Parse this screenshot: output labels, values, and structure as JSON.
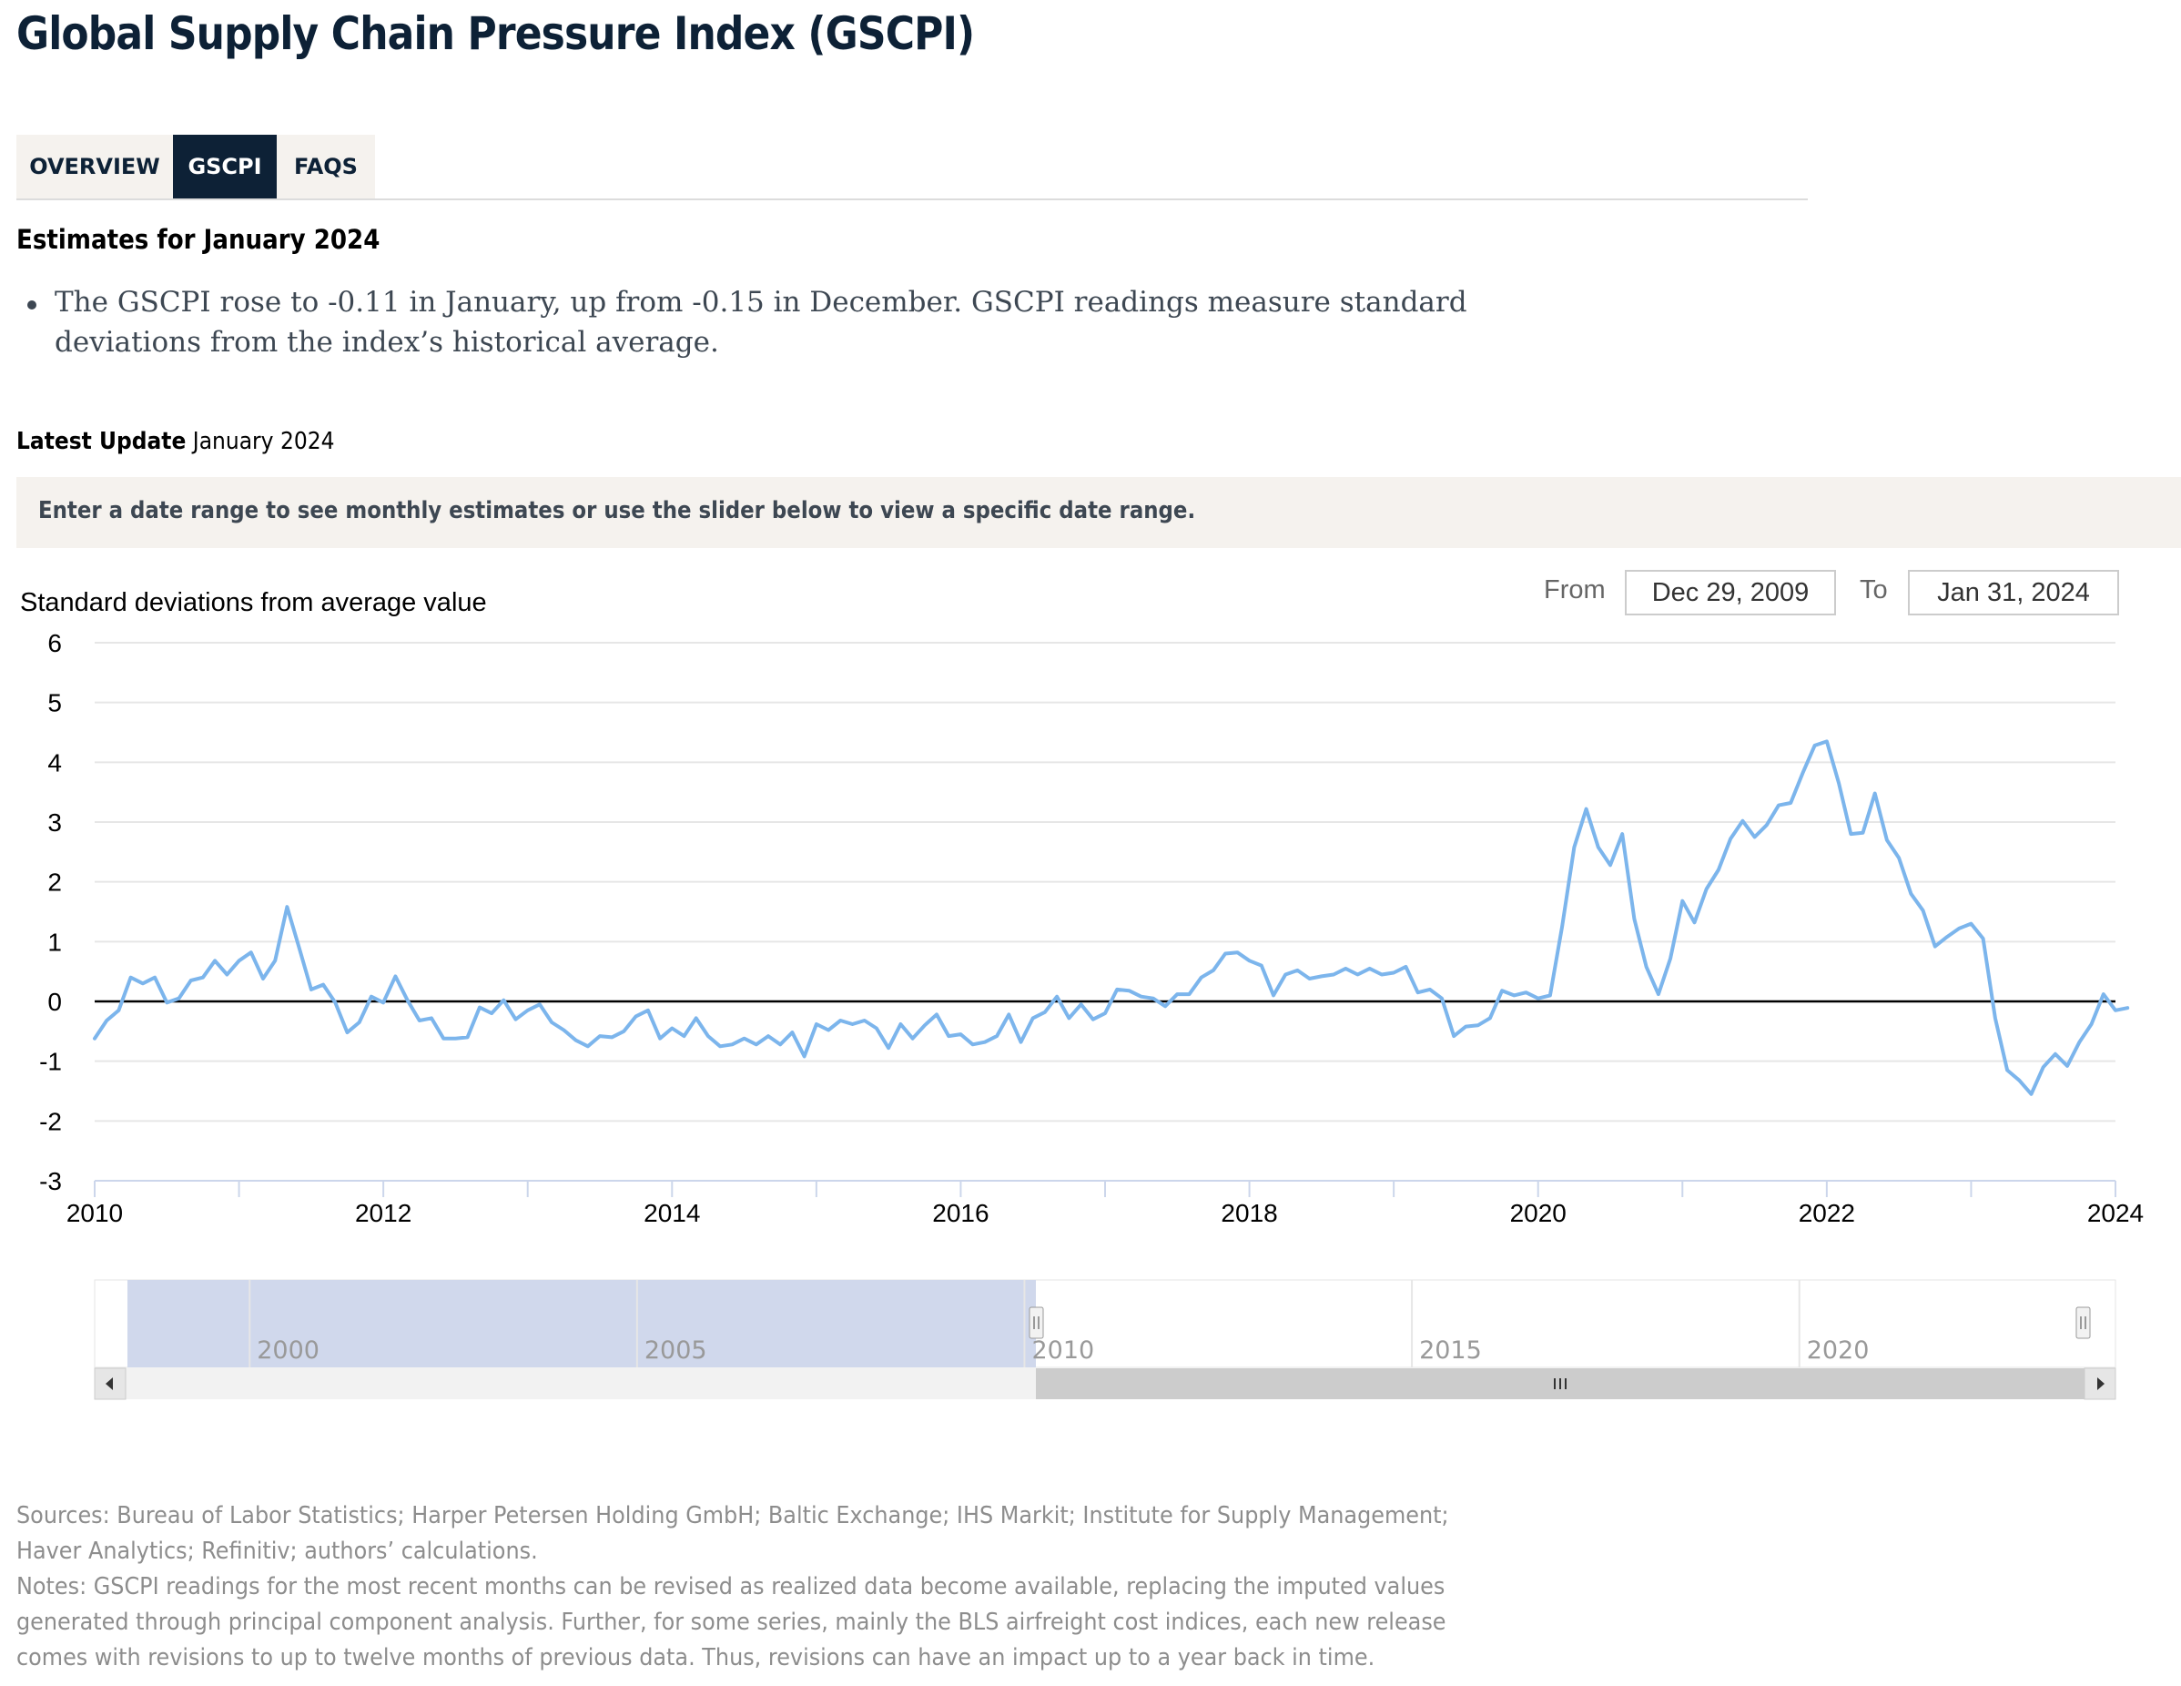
{
  "page": {
    "title": "Global Supply Chain Pressure Index (GSCPI)"
  },
  "tabs": [
    {
      "label": "OVERVIEW",
      "active": false
    },
    {
      "label": "GSCPI",
      "active": true
    },
    {
      "label": "FAQS",
      "active": false
    }
  ],
  "estimates": {
    "heading": "Estimates for January 2024",
    "bullet": "The GSCPI rose to -0.11 in January, up from -0.15 in December. GSCPI readings measure standard deviations from the index’s historical average."
  },
  "latest_update": {
    "label": "Latest Update",
    "value": "January 2024"
  },
  "instruction": "Enter a date range to see monthly estimates or use the slider below to view a specific date range.",
  "range_selector": {
    "from_label": "From",
    "from_value": "Dec 29, 2009",
    "to_label": "To",
    "to_value": "Jan 31, 2024"
  },
  "colors": {
    "series": "#7cb5ec",
    "zero_line": "#000000",
    "grid": "#e6e6e6",
    "navigator_mask": "#d0d8ec",
    "scrollbar_bg": "#f2f2f2",
    "scrollbar_thumb": "#cccccc",
    "tab_active_bg": "#0d2136",
    "panel_bg": "#f5f2ee"
  },
  "chart_data": {
    "type": "line",
    "ylabel": "Standard deviations from average value",
    "ylim": [
      -3,
      6
    ],
    "yticks": [
      6,
      5,
      4,
      3,
      2,
      1,
      0,
      -1,
      -2,
      -3
    ],
    "xlim": [
      "2010-01",
      "2024-01"
    ],
    "xticks": [
      "2010",
      "2012",
      "2014",
      "2016",
      "2018",
      "2020",
      "2022",
      "2024"
    ],
    "grid": true,
    "legend": "none",
    "series": [
      {
        "x_start": "2010-01",
        "frequency": "monthly",
        "values": [
          -0.62,
          -0.32,
          -0.15,
          0.4,
          0.3,
          0.4,
          -0.02,
          0.05,
          0.35,
          0.4,
          0.68,
          0.45,
          0.68,
          0.82,
          0.38,
          0.68,
          1.58,
          0.9,
          0.2,
          0.28,
          -0.02,
          -0.52,
          -0.35,
          0.08,
          -0.02,
          0.42,
          0.02,
          -0.32,
          -0.28,
          -0.62,
          -0.62,
          -0.6,
          -0.1,
          -0.2,
          0.02,
          -0.3,
          -0.15,
          -0.05,
          -0.35,
          -0.48,
          -0.65,
          -0.75,
          -0.58,
          -0.6,
          -0.5,
          -0.25,
          -0.15,
          -0.62,
          -0.45,
          -0.58,
          -0.28,
          -0.58,
          -0.75,
          -0.72,
          -0.62,
          -0.72,
          -0.58,
          -0.72,
          -0.52,
          -0.92,
          -0.38,
          -0.48,
          -0.32,
          -0.38,
          -0.32,
          -0.45,
          -0.78,
          -0.38,
          -0.62,
          -0.4,
          -0.22,
          -0.58,
          -0.55,
          -0.72,
          -0.68,
          -0.58,
          -0.22,
          -0.68,
          -0.28,
          -0.18,
          0.08,
          -0.28,
          -0.05,
          -0.3,
          -0.2,
          0.2,
          0.18,
          0.08,
          0.05,
          -0.08,
          0.12,
          0.12,
          0.4,
          0.52,
          0.8,
          0.82,
          0.68,
          0.6,
          0.1,
          0.45,
          0.52,
          0.38,
          0.42,
          0.45,
          0.55,
          0.45,
          0.55,
          0.45,
          0.48,
          0.58,
          0.15,
          0.2,
          0.05,
          -0.58,
          -0.42,
          -0.4,
          -0.28,
          0.18,
          0.1,
          0.15,
          0.05,
          0.1,
          1.25,
          2.58,
          3.22,
          2.58,
          2.28,
          2.8,
          1.38,
          0.58,
          0.12,
          0.72,
          1.68,
          1.32,
          1.88,
          2.2,
          2.72,
          3.02,
          2.75,
          2.95,
          3.28,
          3.32,
          3.82,
          4.28,
          4.35,
          3.65,
          2.8,
          2.82,
          3.48,
          2.7,
          2.4,
          1.8,
          1.52,
          0.92,
          1.08,
          1.22,
          1.3,
          1.05,
          -0.28,
          -1.15,
          -1.32,
          -1.55,
          -1.1,
          -0.88,
          -1.08,
          -0.68,
          -0.38,
          0.12,
          -0.15,
          -0.11
        ]
      }
    ]
  },
  "navigator": {
    "labels": [
      "2000",
      "2005",
      "2010",
      "2015",
      "2020"
    ],
    "selection_start": "2010-01",
    "selection_end": "2024-01"
  },
  "sources": {
    "sources_text": "Sources: Bureau of Labor Statistics; Harper Petersen Holding GmbH; Baltic Exchange; IHS Markit; Institute for Supply Management; Haver Analytics; Refinitiv; authors’ calculations.",
    "notes_text": "Notes: GSCPI readings for the most recent months can be revised as realized data become available, replacing the imputed values generated through principal component analysis. Further, for some series, mainly the BLS airfreight cost indices, each new release comes with revisions to up to twelve months of previous data. Thus, revisions can have an impact up to a year back in time."
  }
}
